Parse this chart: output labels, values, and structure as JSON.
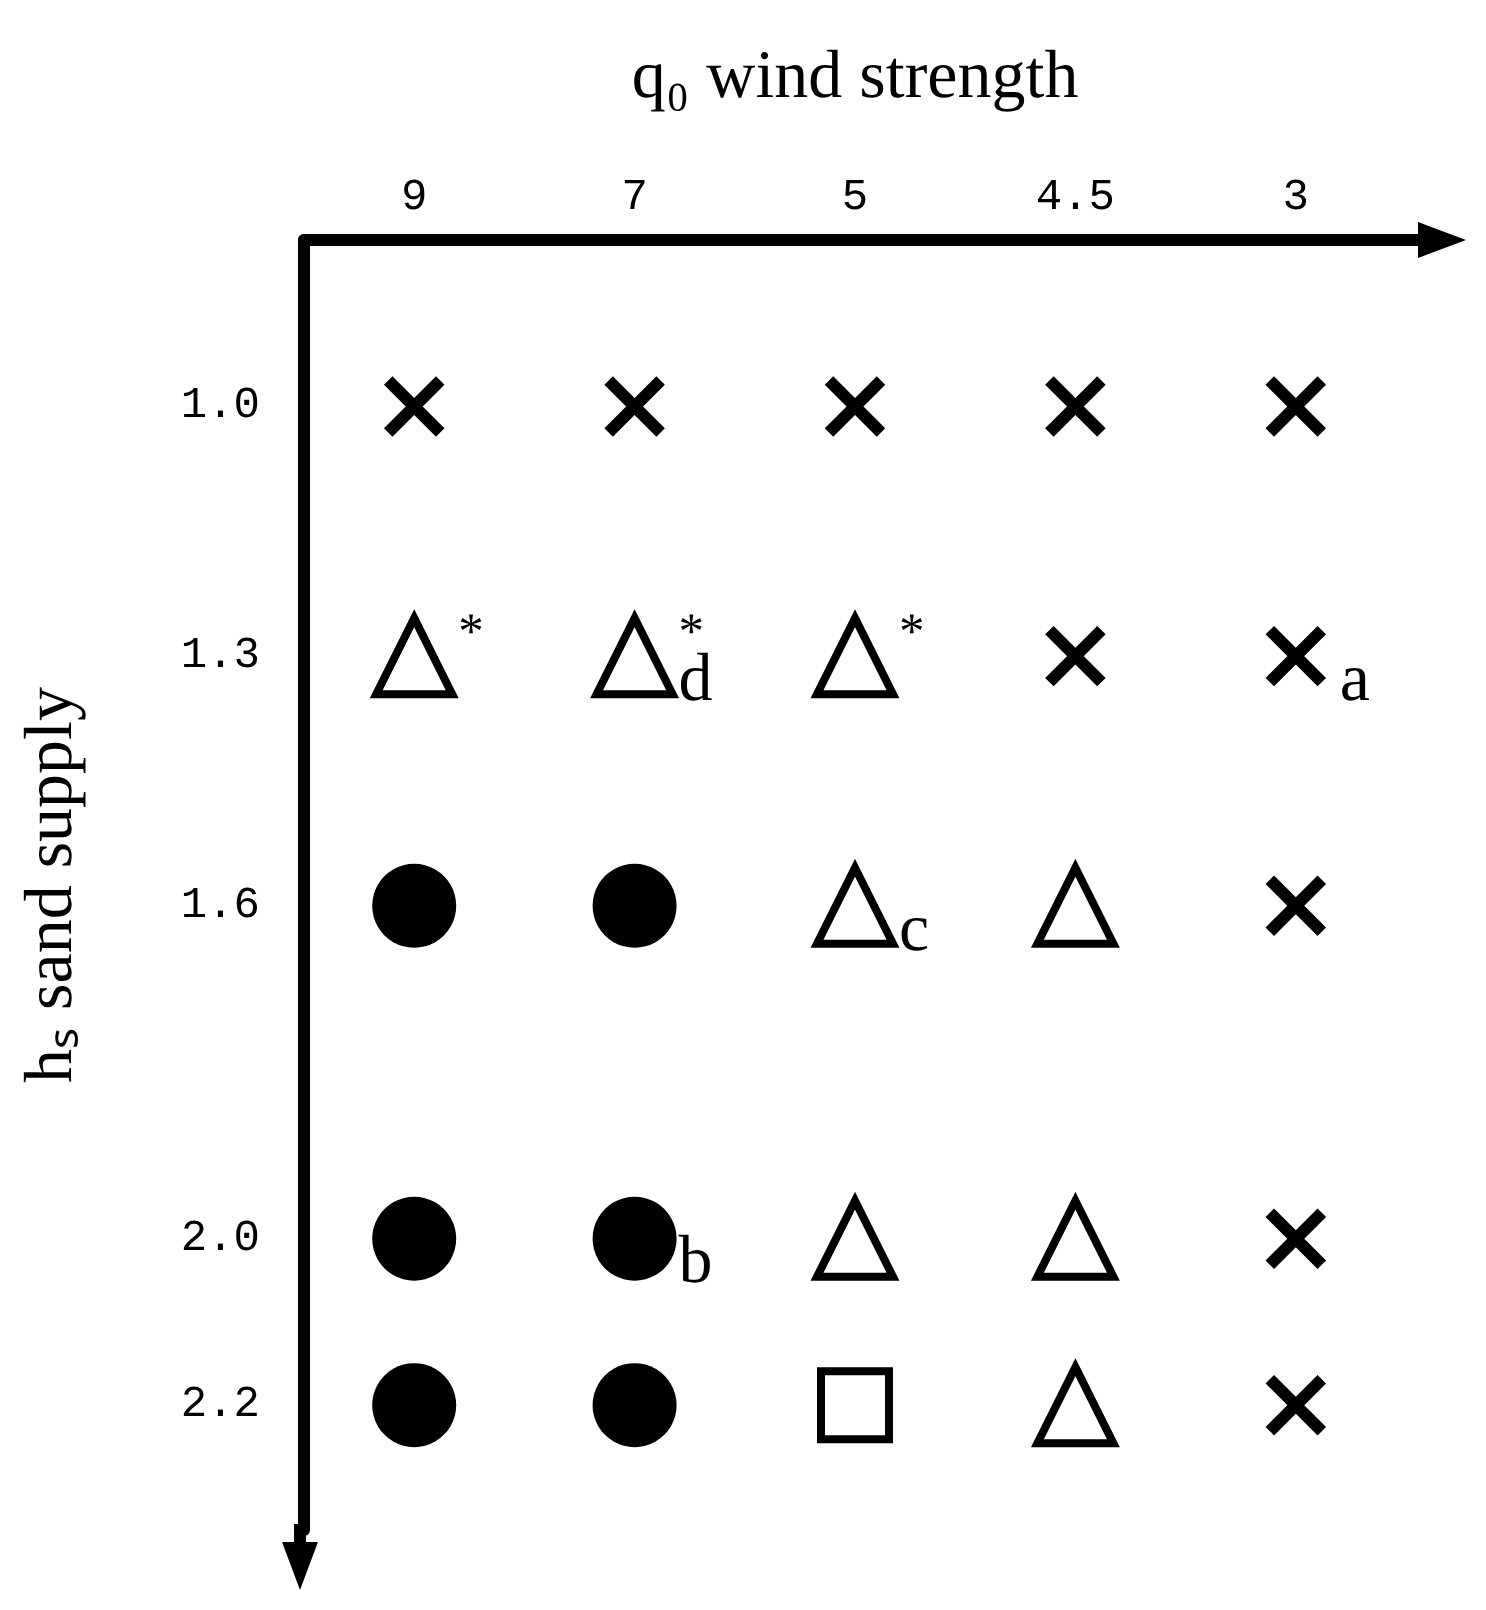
{
  "chart_data": {
    "type": "scatter",
    "xlabel": "q₀ wind strength",
    "ylabel": "hₛ sand supply",
    "categories": [
      "9",
      "7",
      "5",
      "4.5",
      "3"
    ],
    "ylim": [
      2.35,
      0.8
    ],
    "yticks": [
      {
        "value": 1.0,
        "label": "1.0"
      },
      1.3,
      1.6,
      {
        "value": 2.0,
        "label": "2.0"
      },
      2.2
    ],
    "grid": false,
    "series": [
      {
        "marker": "cross",
        "color": "#000000",
        "x": [
          "9",
          "7",
          "5",
          "4.5",
          "3",
          "4.5",
          "3",
          "3",
          "3",
          "3"
        ],
        "values": [
          1.0,
          1.0,
          1.0,
          1.0,
          1.0,
          1.3,
          1.3,
          1.6,
          2.0,
          2.2
        ]
      },
      {
        "marker": "triangle",
        "color": "#000000",
        "x": [
          "9",
          "7",
          "5",
          "5",
          "4.5",
          "5",
          "4.5",
          "4.5"
        ],
        "values": [
          1.3,
          1.3,
          1.3,
          1.6,
          1.6,
          2.0,
          2.0,
          2.2
        ]
      },
      {
        "marker": "circle",
        "color": "#000000",
        "x": [
          "9",
          "7",
          "9",
          "7",
          "9",
          "7"
        ],
        "values": [
          1.6,
          1.6,
          2.0,
          2.0,
          2.2,
          2.2
        ]
      },
      {
        "marker": "square",
        "color": "#000000",
        "x": [
          "5"
        ],
        "values": [
          2.2
        ]
      }
    ],
    "annotations": [
      {
        "text": "$^{*}$",
        "x": "9",
        "y": 1.3
      },
      {
        "text": "$^{*}$",
        "x": "7",
        "y": 1.3
      },
      {
        "text": "$_{d}$",
        "x": "7",
        "y": 1.3
      },
      {
        "text": "$^{*}$",
        "x": "5",
        "y": 1.3
      },
      {
        "text": "$_{a}$",
        "x": "3",
        "y": 1.3
      },
      {
        "text": "$_{c}$",
        "x": "5",
        "y": 1.6
      },
      {
        "text": "$_{b}$",
        "x": "7",
        "y": 2.0
      }
    ]
  }
}
